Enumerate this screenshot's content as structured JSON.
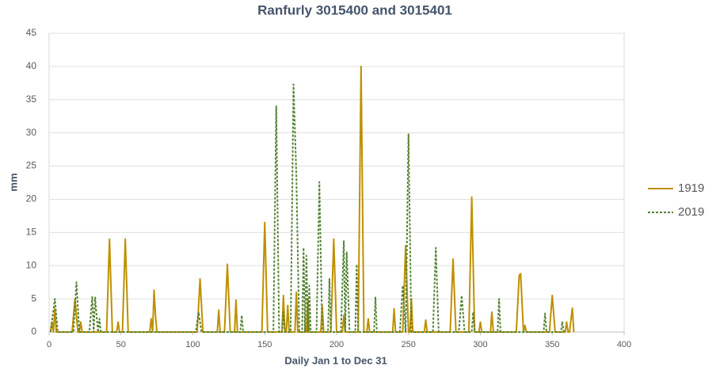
{
  "chart_data": {
    "type": "line",
    "title": "Ranfurly 3015400 and 3015401",
    "x_label": "Daily Jan 1 to Dec 31",
    "y_label": "mm",
    "xlim": [
      0,
      400
    ],
    "xticks": [
      0,
      50,
      100,
      150,
      200,
      250,
      300,
      350,
      400
    ],
    "ylim": [
      0,
      45
    ],
    "yticks": [
      0,
      5,
      10,
      15,
      20,
      25,
      30,
      35,
      40,
      45
    ],
    "grid": true,
    "legend": "right",
    "series": [
      {
        "name": "1919",
        "color": "#bf9000",
        "dash": false,
        "x": [
          1,
          2,
          3,
          4,
          5,
          6,
          16,
          18,
          20,
          21,
          22,
          23,
          40,
          42,
          44,
          47,
          48,
          49,
          51,
          53,
          55,
          70,
          71,
          72,
          73,
          74,
          75,
          103,
          105,
          107,
          117,
          118,
          119,
          122,
          124,
          126,
          129,
          130,
          131,
          148,
          150,
          152,
          162,
          163,
          164,
          165,
          166,
          167,
          171,
          172,
          173,
          179,
          180,
          181,
          189,
          190,
          191,
          196,
          198,
          200,
          204,
          205,
          206,
          215,
          217,
          219,
          221,
          222,
          223,
          239,
          240,
          241,
          246,
          248,
          250,
          251,
          252,
          253,
          261,
          262,
          263,
          279,
          281,
          283,
          292,
          294,
          296,
          299,
          300,
          301,
          307,
          308,
          309,
          325,
          327,
          328,
          330,
          331,
          332,
          348,
          350,
          352,
          359,
          360,
          361,
          362,
          364,
          365
        ],
        "values": [
          0,
          1.5,
          0,
          3.5,
          0,
          0,
          0,
          5,
          0,
          0,
          1.5,
          0,
          0,
          14,
          0,
          0,
          1.5,
          0,
          0,
          14,
          0,
          0,
          2,
          0,
          6.3,
          2.5,
          0,
          0,
          8,
          0,
          0,
          3.3,
          0,
          0,
          10.2,
          0,
          0,
          4.8,
          0,
          0,
          16.5,
          0,
          0,
          5.5,
          0,
          0,
          4,
          0,
          0,
          6,
          0,
          0,
          5,
          0,
          0,
          4,
          0,
          0,
          14,
          0,
          0,
          2.5,
          0,
          0,
          40,
          0,
          0,
          2,
          0,
          0,
          3.5,
          0,
          0,
          13,
          0,
          0,
          5,
          0,
          0,
          1.8,
          0,
          0,
          11,
          0,
          0,
          20.3,
          0,
          0,
          1.5,
          0,
          0,
          3,
          0,
          0,
          8.5,
          8.8,
          0,
          1,
          0,
          0,
          5.5,
          0,
          0,
          1.5,
          0,
          0,
          3.6,
          0
        ]
      },
      {
        "name": "2019",
        "color": "#548235",
        "dash": true,
        "x": [
          1,
          4,
          6,
          17,
          19,
          21,
          28,
          30,
          31,
          32,
          34,
          35,
          36,
          102,
          104,
          106,
          133,
          134,
          135,
          156,
          158,
          160,
          162,
          163,
          164,
          168,
          170,
          172,
          174,
          176,
          177,
          178,
          179,
          180,
          181,
          182,
          186,
          188,
          190,
          194,
          195,
          196,
          203,
          205,
          206,
          207,
          209,
          213,
          214,
          215,
          226,
          227,
          228,
          244,
          246,
          248,
          250,
          252,
          267,
          269,
          271,
          285,
          287,
          289,
          294,
          295,
          296,
          312,
          313,
          314,
          344,
          345,
          346,
          356,
          357,
          358
        ],
        "values": [
          0,
          5,
          0,
          0,
          7.5,
          0,
          0,
          5.3,
          0,
          5.2,
          0,
          2,
          0,
          0,
          3,
          0,
          0,
          2.5,
          0,
          0,
          34,
          0,
          0,
          3,
          0,
          0,
          37.3,
          23.5,
          0,
          0,
          12.7,
          0,
          11.5,
          0,
          7,
          0,
          0,
          22.6,
          0,
          0,
          8,
          0,
          0,
          13.7,
          0,
          12,
          0,
          0,
          10.2,
          0,
          0,
          5.2,
          0,
          0,
          7,
          0,
          29.8,
          0,
          0,
          12.7,
          0,
          0,
          5.5,
          0,
          0,
          3,
          0,
          0,
          5,
          0,
          0,
          2.8,
          0,
          0,
          1.5,
          0
        ]
      }
    ]
  }
}
